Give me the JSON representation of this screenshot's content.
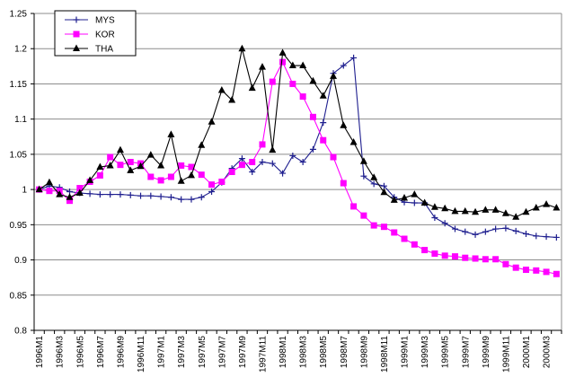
{
  "chart_data": {
    "type": "line",
    "title": "",
    "xlabel": "",
    "ylabel": "",
    "ylim": [
      0.8,
      1.25
    ],
    "yticks": [
      "0.8",
      "0.85",
      "0.9",
      "0.95",
      "1",
      "1.05",
      "1.1",
      "1.15",
      "1.2",
      "1.25"
    ],
    "grid": "horizontal",
    "legend": "top-left",
    "categories": [
      "1996M1",
      "1996M2",
      "1996M3",
      "1996M4",
      "1996M5",
      "1996M6",
      "1996M7",
      "1996M8",
      "1996M9",
      "1996M10",
      "1996M11",
      "1996M12",
      "1997M1",
      "1997M2",
      "1997M3",
      "1997M4",
      "1997M5",
      "1997M6",
      "1997M7",
      "1997M8",
      "1997M9",
      "1997M10",
      "1997M11",
      "1997M12",
      "1998M1",
      "1998M2",
      "1998M3",
      "1998M4",
      "1998M5",
      "1998M6",
      "1998M7",
      "1998M8",
      "1998M9",
      "1998M10",
      "1998M11",
      "1998M12",
      "1999M1",
      "1999M2",
      "1999M3",
      "1999M4",
      "1999M5",
      "1999M6",
      "1999M7",
      "1999M8",
      "1999M9",
      "1999M10",
      "1999M11",
      "1999M12",
      "2000M1",
      "2000M2",
      "2000M3",
      "2000M4"
    ],
    "series": [
      {
        "name": "MYS",
        "color": "#1f1f8f",
        "marker": "plus",
        "values": [
          1.0,
          1.005,
          1.003,
          0.997,
          0.995,
          0.994,
          0.993,
          0.993,
          0.993,
          0.992,
          0.991,
          0.991,
          0.99,
          0.989,
          0.986,
          0.986,
          0.989,
          0.997,
          1.01,
          1.03,
          1.044,
          1.025,
          1.039,
          1.037,
          1.023,
          1.048,
          1.039,
          1.057,
          1.095,
          1.165,
          1.176,
          1.187,
          1.019,
          1.008,
          1.005,
          0.989,
          0.982,
          0.981,
          0.981,
          0.96,
          0.952,
          0.944,
          0.94,
          0.936,
          0.94,
          0.944,
          0.945,
          0.941,
          0.937,
          0.934,
          0.933,
          0.932
        ]
      },
      {
        "name": "KOR",
        "color": "#ff00ff",
        "marker": "square",
        "values": [
          1.0,
          0.998,
          0.998,
          0.984,
          1.002,
          1.011,
          1.02,
          1.046,
          1.035,
          1.039,
          1.037,
          1.018,
          1.013,
          1.018,
          1.034,
          1.032,
          1.021,
          1.007,
          1.011,
          1.025,
          1.035,
          1.039,
          1.064,
          1.153,
          1.181,
          1.15,
          1.132,
          1.103,
          1.07,
          1.046,
          1.009,
          0.976,
          0.963,
          0.949,
          0.947,
          0.939,
          0.93,
          0.922,
          0.914,
          0.909,
          0.906,
          0.905,
          0.903,
          0.902,
          0.901,
          0.901,
          0.894,
          0.889,
          0.886,
          0.885,
          0.883,
          0.88
        ]
      },
      {
        "name": "THA",
        "color": "#000000",
        "marker": "triangle",
        "values": [
          1.0,
          1.01,
          0.993,
          0.989,
          0.995,
          1.013,
          1.032,
          1.034,
          1.056,
          1.027,
          1.033,
          1.049,
          1.034,
          1.078,
          1.012,
          1.02,
          1.063,
          1.096,
          1.141,
          1.127,
          1.2,
          1.144,
          1.174,
          1.056,
          1.194,
          1.176,
          1.176,
          1.154,
          1.133,
          1.161,
          1.091,
          1.067,
          1.04,
          1.017,
          0.996,
          0.985,
          0.988,
          0.993,
          0.981,
          0.975,
          0.973,
          0.969,
          0.969,
          0.968,
          0.971,
          0.971,
          0.966,
          0.961,
          0.968,
          0.974,
          0.979,
          0.974
        ]
      }
    ]
  }
}
